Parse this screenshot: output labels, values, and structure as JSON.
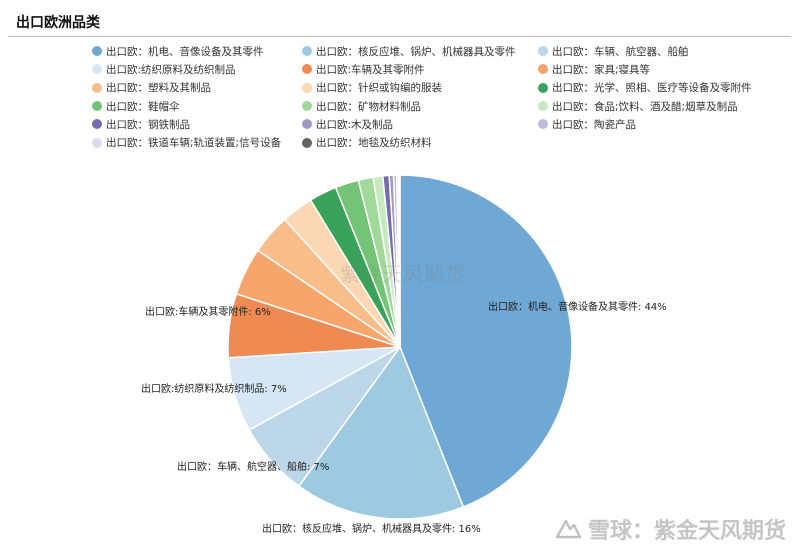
{
  "title": "出口欧洲品类",
  "watermark": "紫金天风期货",
  "brand": {
    "sep": "：",
    "name": "紫金天风期货",
    "site": "雪球"
  },
  "chart_data": {
    "type": "pie",
    "title": "出口欧洲品类",
    "legend_position": "top",
    "series": [
      {
        "name": "出口欧：机电、音像设备及其零件",
        "value": 44,
        "color": "#6fa8d4",
        "label": "出口欧：机电、音像设备及其零件: 44%"
      },
      {
        "name": "出口欧：核反应堆、锅炉、机械器具及零件",
        "value": 16,
        "color": "#9ecae1",
        "label": "出口欧：核反应堆、锅炉、机械器具及零件: 16%"
      },
      {
        "name": "出口欧：车辆、航空器、船舶",
        "value": 7,
        "color": "#bcd7ea",
        "label": "出口欧：车辆、航空器、船舶: 7%"
      },
      {
        "name": "出口欧:纺织原料及纺织制品",
        "value": 7,
        "color": "#d6e6f4",
        "label": "出口欧:纺织原料及纺织制品: 7%"
      },
      {
        "name": "出口欧:车辆及其零附件",
        "value": 6,
        "color": "#ee8a52",
        "label": "出口欧:车辆及其零附件: 6%"
      },
      {
        "name": "出口欧：家具;寝具等",
        "value": 4.5,
        "color": "#f7a56a",
        "label": ""
      },
      {
        "name": "出口欧：塑料及其制品",
        "value": 3.8,
        "color": "#f9bd8a",
        "label": ""
      },
      {
        "name": "出口欧：针织或钩编的服装",
        "value": 3,
        "color": "#fbd7b3",
        "label": ""
      },
      {
        "name": "出口欧：光学、照相、医疗等设备及零附件",
        "value": 2.6,
        "color": "#3aa35b",
        "label": ""
      },
      {
        "name": "出口欧：鞋帽伞",
        "value": 2.2,
        "color": "#74c476",
        "label": ""
      },
      {
        "name": "出口欧：矿物材料制品",
        "value": 1.4,
        "color": "#a1d99b",
        "label": ""
      },
      {
        "name": "出口欧：食品;饮料、酒及醋;烟草及制品",
        "value": 0.9,
        "color": "#c7e9c0",
        "label": ""
      },
      {
        "name": "出口欧：钢铁制品",
        "value": 0.6,
        "color": "#756bb1",
        "label": ""
      },
      {
        "name": "出口欧:木及制品",
        "value": 0.4,
        "color": "#9e9ac8",
        "label": ""
      },
      {
        "name": "出口欧：陶瓷产品",
        "value": 0.3,
        "color": "#bcbddc",
        "label": ""
      },
      {
        "name": "出口欧：铁道车辆;轨道装置;信号设备",
        "value": 0.2,
        "color": "#dadaeb",
        "label": ""
      },
      {
        "name": "出口欧：地毯及纺织材料",
        "value": 0.1,
        "color": "#636363",
        "label": ""
      }
    ]
  }
}
